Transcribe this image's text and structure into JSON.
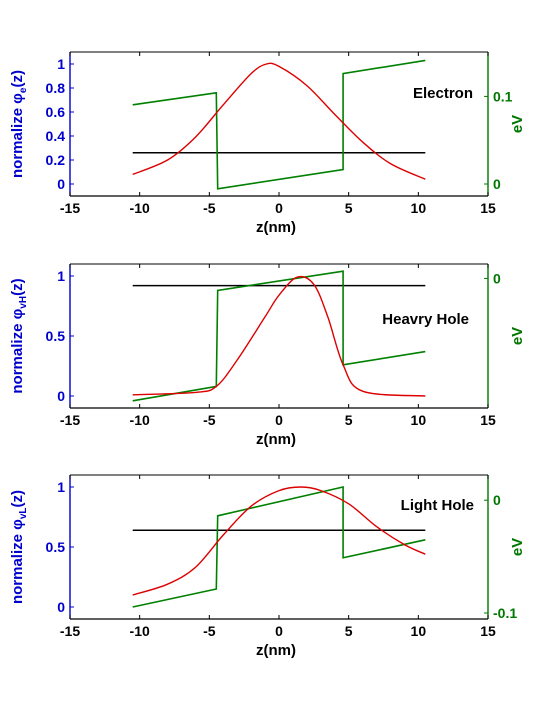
{
  "colors": {
    "left_axis": "#0000cc",
    "right_axis": "#007700",
    "wavefunction": "#dd0000",
    "potential": "#008000",
    "energy_level": "#000000"
  },
  "chart_data": [
    {
      "type": "line",
      "annotation": "Electron",
      "xlabel": "z(nm)",
      "ylabel_main": "normalize ",
      "ylabel_symbol": "φ",
      "ylabel_sub": "e",
      "ylabel_end": "(z)",
      "y2label": "eV",
      "xlim": [
        -15,
        15
      ],
      "ylim": [
        -0.1,
        1.1
      ],
      "x_ticks": [
        "-15",
        "-10",
        "-5",
        "0",
        "5",
        "10",
        "15"
      ],
      "y_ticks": [
        "0",
        "0.2",
        "0.4",
        "0.6",
        "0.8",
        "1"
      ],
      "y2_ticks": [
        "0",
        "0.1"
      ],
      "y2_tick_positions": [
        0.0,
        0.73
      ],
      "wavefunction": {
        "center": -0.9,
        "sigma_left": 4.3,
        "sigma_right": 4.9,
        "x": [
          -10.5,
          -8,
          -6,
          -4,
          -2,
          -0.9,
          0,
          2,
          4,
          6,
          8,
          10.5
        ],
        "y": [
          0.08,
          0.2,
          0.39,
          0.66,
          0.92,
          1.0,
          0.98,
          0.82,
          0.58,
          0.35,
          0.17,
          0.04
        ]
      },
      "potential": {
        "x": [
          -10.5,
          -4.5,
          -4.4,
          4.6,
          4.6,
          10.5
        ],
        "y": [
          0.66,
          0.76,
          -0.04,
          0.12,
          0.92,
          1.03
        ]
      },
      "energy_level": {
        "x": [
          -10.5,
          10.5
        ],
        "y": [
          0.26,
          0.26
        ]
      }
    },
    {
      "type": "line",
      "annotation": "Heavry Hole",
      "xlabel": "z(nm)",
      "ylabel_main": "normalize ",
      "ylabel_symbol": "φ",
      "ylabel_sub": "vH",
      "ylabel_end": "(z)",
      "y2label": "eV",
      "xlim": [
        -15,
        15
      ],
      "ylim": [
        -0.1,
        1.1
      ],
      "x_ticks": [
        "-15",
        "-10",
        "-5",
        "0",
        "5",
        "10",
        "15"
      ],
      "y_ticks": [
        "0",
        "0.5",
        "1"
      ],
      "y2_ticks": [
        "0"
      ],
      "y2_tick_positions": [
        0.98
      ],
      "wavefunction": {
        "x": [
          -10.5,
          -6,
          -4.5,
          -3,
          -1,
          0,
          1.3,
          2.5,
          3.5,
          4.6,
          6,
          10.5
        ],
        "y": [
          0.01,
          0.03,
          0.08,
          0.3,
          0.66,
          0.84,
          0.99,
          0.93,
          0.66,
          0.26,
          0.04,
          0.0
        ]
      },
      "potential": {
        "x": [
          -10.5,
          -4.5,
          -4.4,
          4.6,
          4.6,
          10.5
        ],
        "y": [
          -0.04,
          0.08,
          0.88,
          1.04,
          0.26,
          0.37
        ]
      },
      "energy_level": {
        "x": [
          -10.5,
          10.5
        ],
        "y": [
          0.92,
          0.92
        ]
      }
    },
    {
      "type": "line",
      "annotation": "Light Hole",
      "xlabel": "z(nm)",
      "ylabel_main": "normalize ",
      "ylabel_symbol": "φ",
      "ylabel_sub": "vL",
      "ylabel_end": "(z)",
      "y2label": "eV",
      "xlim": [
        -15,
        15
      ],
      "ylim": [
        -0.1,
        1.1
      ],
      "x_ticks": [
        "-15",
        "-10",
        "-5",
        "0",
        "5",
        "10",
        "15"
      ],
      "y_ticks": [
        "0",
        "0.5",
        "1"
      ],
      "y2_ticks": [
        "0",
        "-0.1"
      ],
      "y2_tick_positions": [
        0.89,
        -0.05
      ],
      "wavefunction": {
        "x": [
          -10.5,
          -8,
          -6,
          -4,
          -2,
          0,
          1.6,
          3,
          5,
          7,
          9,
          10.5
        ],
        "y": [
          0.1,
          0.19,
          0.33,
          0.6,
          0.84,
          0.97,
          1.0,
          0.97,
          0.86,
          0.67,
          0.52,
          0.44
        ]
      },
      "potential": {
        "x": [
          -10.5,
          -4.5,
          -4.4,
          4.6,
          4.6,
          10.5
        ],
        "y": [
          0.0,
          0.15,
          0.76,
          1.0,
          0.41,
          0.56
        ]
      },
      "energy_level": {
        "x": [
          -10.5,
          10.5
        ],
        "y": [
          0.64,
          0.64
        ]
      }
    }
  ]
}
